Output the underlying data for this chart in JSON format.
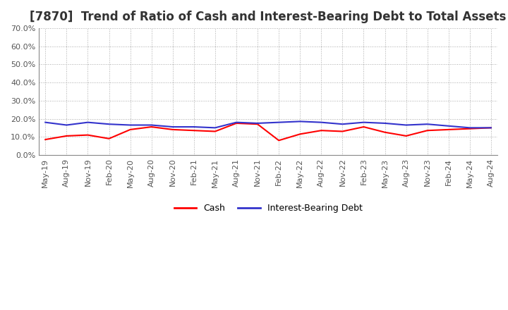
{
  "title": "[7870]  Trend of Ratio of Cash and Interest-Bearing Debt to Total Assets",
  "x_labels": [
    "May-19",
    "Aug-19",
    "Nov-19",
    "Feb-20",
    "May-20",
    "Aug-20",
    "Nov-20",
    "Feb-21",
    "May-21",
    "Aug-21",
    "Nov-21",
    "Feb-22",
    "May-22",
    "Aug-22",
    "Nov-22",
    "Feb-23",
    "May-23",
    "Aug-23",
    "Nov-23",
    "Feb-24",
    "May-24",
    "Aug-24"
  ],
  "cash": [
    8.5,
    10.5,
    11.0,
    9.0,
    14.0,
    15.5,
    14.0,
    13.5,
    13.0,
    17.5,
    17.0,
    8.0,
    11.5,
    13.5,
    13.0,
    15.5,
    12.5,
    10.5,
    13.5,
    14.0,
    14.5,
    15.0
  ],
  "ibd": [
    18.0,
    16.5,
    18.0,
    17.0,
    16.5,
    16.5,
    15.5,
    15.5,
    15.0,
    18.0,
    17.5,
    18.0,
    18.5,
    18.0,
    17.0,
    18.0,
    17.5,
    16.5,
    17.0,
    16.0,
    15.0,
    15.0
  ],
  "cash_color": "#ff0000",
  "ibd_color": "#3333cc",
  "ylim": [
    0,
    70
  ],
  "yticks": [
    0,
    10,
    20,
    30,
    40,
    50,
    60,
    70
  ],
  "background_color": "#ffffff",
  "plot_bg_color": "#ffffff",
  "grid_color": "#aaaaaa",
  "title_fontsize": 12,
  "tick_fontsize": 8,
  "legend_labels": [
    "Cash",
    "Interest-Bearing Debt"
  ]
}
